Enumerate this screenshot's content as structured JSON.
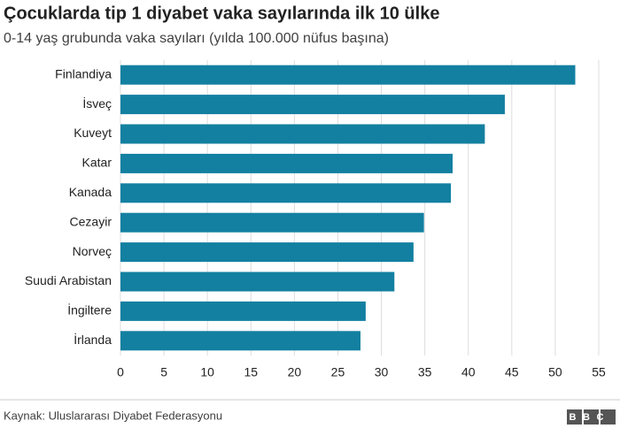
{
  "chart_data": {
    "type": "hbar",
    "title": "Çocuklarda tip 1 diyabet vaka sayılarında ilk 10 ülke",
    "subtitle": "0-14 yaş grubunda vaka sayıları (yılda 100.000 nüfus başına)",
    "categories": [
      "Finlandiya",
      "İsveç",
      "Kuveyt",
      "Katar",
      "Kanada",
      "Cezayir",
      "Norveç",
      "Suudi Arabistan",
      "İngiltere",
      "İrlanda"
    ],
    "values": [
      52.3,
      44.2,
      41.9,
      38.2,
      38.0,
      34.9,
      33.7,
      31.5,
      28.2,
      27.6
    ],
    "color": "#1380a1",
    "xlim": [
      0,
      55
    ],
    "xticks": [
      0,
      5,
      10,
      15,
      20,
      25,
      30,
      35,
      40,
      45,
      50,
      55
    ],
    "grid": true,
    "source": "Kaynak: Uluslararası Diyabet Federasyonu",
    "logo": "BBC"
  }
}
